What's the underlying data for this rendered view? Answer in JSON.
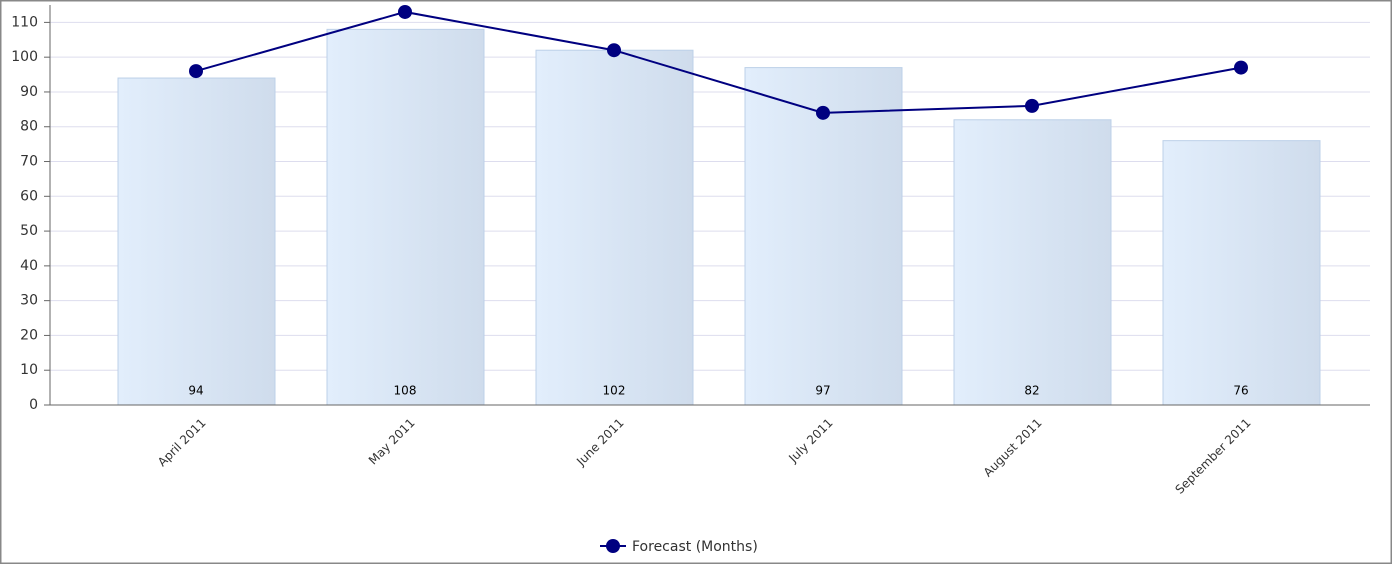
{
  "chart_data": {
    "type": "bar",
    "categories": [
      "April 2011",
      "May 2011",
      "June 2011",
      "July 2011",
      "August 2011",
      "September 2011"
    ],
    "series": [
      {
        "type": "bar",
        "color": "#dce9f8",
        "values": [
          94,
          108,
          102,
          97,
          82,
          76
        ]
      },
      {
        "type": "line",
        "name": "Forecast (Months)",
        "color": "#000080",
        "values": [
          96,
          113,
          102,
          84,
          86,
          97
        ]
      }
    ],
    "ylim": [
      0,
      115
    ],
    "yticks": [
      0,
      10,
      20,
      30,
      40,
      50,
      60,
      70,
      80,
      90,
      100,
      110
    ],
    "grid": true,
    "legend": "bottom"
  }
}
